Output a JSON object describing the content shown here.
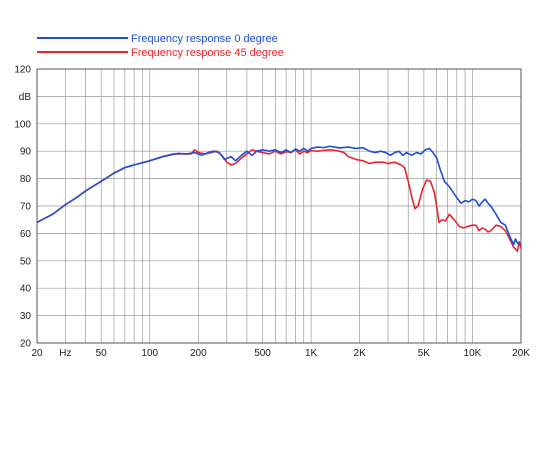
{
  "chart_data": {
    "type": "line",
    "title": "",
    "xlabel": "",
    "ylabel": "",
    "x_scale": "log",
    "xlim": [
      20,
      20000
    ],
    "ylim": [
      20,
      120
    ],
    "grid": true,
    "legend_placement": "top-left",
    "x_ticks": [
      {
        "value": 20,
        "label": "20"
      },
      {
        "value": 30,
        "label": "Hz"
      },
      {
        "value": 50,
        "label": "50"
      },
      {
        "value": 100,
        "label": "100"
      },
      {
        "value": 200,
        "label": "200"
      },
      {
        "value": 500,
        "label": "500"
      },
      {
        "value": 1000,
        "label": "1K"
      },
      {
        "value": 2000,
        "label": "2K"
      },
      {
        "value": 5000,
        "label": "5K"
      },
      {
        "value": 10000,
        "label": "10K"
      },
      {
        "value": 20000,
        "label": "20K"
      }
    ],
    "y_ticks": [
      {
        "value": 20,
        "label": "20"
      },
      {
        "value": 30,
        "label": "30"
      },
      {
        "value": 40,
        "label": "40"
      },
      {
        "value": 50,
        "label": "50"
      },
      {
        "value": 60,
        "label": "60"
      },
      {
        "value": 70,
        "label": "70"
      },
      {
        "value": 80,
        "label": "80"
      },
      {
        "value": 90,
        "label": "90"
      },
      {
        "value": 100,
        "label": "100"
      },
      {
        "value": 110,
        "label": "dB"
      },
      {
        "value": 120,
        "label": "120"
      }
    ],
    "series": [
      {
        "name": "Frequency response 0 degree",
        "color": "#1f4fd6",
        "points": [
          [
            20,
            64
          ],
          [
            25,
            67
          ],
          [
            30,
            70.5
          ],
          [
            35,
            73
          ],
          [
            40,
            75.5
          ],
          [
            50,
            79
          ],
          [
            60,
            82
          ],
          [
            70,
            84
          ],
          [
            80,
            85
          ],
          [
            100,
            86.5
          ],
          [
            120,
            88
          ],
          [
            150,
            89.2
          ],
          [
            170,
            89
          ],
          [
            190,
            89.5
          ],
          [
            210,
            88.5
          ],
          [
            230,
            89.5
          ],
          [
            250,
            90
          ],
          [
            270,
            89.5
          ],
          [
            290,
            87
          ],
          [
            320,
            88
          ],
          [
            340,
            86.5
          ],
          [
            370,
            88.5
          ],
          [
            400,
            90
          ],
          [
            430,
            88.5
          ],
          [
            460,
            90
          ],
          [
            500,
            90.5
          ],
          [
            550,
            90
          ],
          [
            600,
            90.5
          ],
          [
            650,
            89.5
          ],
          [
            700,
            90.5
          ],
          [
            750,
            89.5
          ],
          [
            800,
            90.8
          ],
          [
            850,
            90
          ],
          [
            900,
            91
          ],
          [
            950,
            90
          ],
          [
            1000,
            91
          ],
          [
            1100,
            91.5
          ],
          [
            1200,
            91.3
          ],
          [
            1300,
            91.8
          ],
          [
            1400,
            91.5
          ],
          [
            1500,
            91.2
          ],
          [
            1700,
            91.5
          ],
          [
            1900,
            91
          ],
          [
            2100,
            91.3
          ],
          [
            2300,
            90
          ],
          [
            2500,
            89.5
          ],
          [
            2700,
            90
          ],
          [
            2900,
            89.5
          ],
          [
            3100,
            88.5
          ],
          [
            3300,
            89.5
          ],
          [
            3500,
            90
          ],
          [
            3700,
            88.5
          ],
          [
            3900,
            89.5
          ],
          [
            4200,
            88.5
          ],
          [
            4500,
            89.5
          ],
          [
            4800,
            89
          ],
          [
            5100,
            90.5
          ],
          [
            5400,
            91
          ],
          [
            5700,
            89.5
          ],
          [
            6000,
            87.5
          ],
          [
            6300,
            83.5
          ],
          [
            6700,
            79
          ],
          [
            7200,
            77
          ],
          [
            7700,
            74.5
          ],
          [
            8000,
            73
          ],
          [
            8500,
            71
          ],
          [
            9000,
            72
          ],
          [
            9500,
            71.5
          ],
          [
            10000,
            72.5
          ],
          [
            10500,
            72
          ],
          [
            11000,
            70
          ],
          [
            11500,
            71.5
          ],
          [
            12000,
            72.5
          ],
          [
            12500,
            71
          ],
          [
            13000,
            70
          ],
          [
            14000,
            67
          ],
          [
            15000,
            64
          ],
          [
            16000,
            63
          ],
          [
            17000,
            59
          ],
          [
            18000,
            56
          ],
          [
            18500,
            58
          ],
          [
            19000,
            56.5
          ],
          [
            20000,
            55.5
          ]
        ]
      },
      {
        "name": "Frequency response 45 degree",
        "color": "#e8262b",
        "points": [
          [
            20,
            64
          ],
          [
            25,
            67
          ],
          [
            30,
            70.5
          ],
          [
            35,
            73
          ],
          [
            40,
            75.5
          ],
          [
            50,
            79
          ],
          [
            60,
            82
          ],
          [
            70,
            84
          ],
          [
            80,
            85
          ],
          [
            100,
            86.5
          ],
          [
            120,
            88
          ],
          [
            140,
            89
          ],
          [
            160,
            89
          ],
          [
            180,
            89
          ],
          [
            190,
            90.5
          ],
          [
            200,
            89.5
          ],
          [
            220,
            89
          ],
          [
            240,
            89.5
          ],
          [
            260,
            90
          ],
          [
            280,
            88.5
          ],
          [
            300,
            86
          ],
          [
            320,
            85
          ],
          [
            340,
            85.5
          ],
          [
            370,
            87.5
          ],
          [
            400,
            89
          ],
          [
            430,
            90.5
          ],
          [
            460,
            90
          ],
          [
            500,
            89.5
          ],
          [
            550,
            89
          ],
          [
            600,
            90
          ],
          [
            650,
            89
          ],
          [
            700,
            89.8
          ],
          [
            750,
            89.5
          ],
          [
            800,
            90.5
          ],
          [
            850,
            89
          ],
          [
            900,
            90
          ],
          [
            950,
            89.5
          ],
          [
            1000,
            90.2
          ],
          [
            1100,
            90
          ],
          [
            1200,
            90.3
          ],
          [
            1300,
            90.5
          ],
          [
            1400,
            90.3
          ],
          [
            1500,
            90
          ],
          [
            1600,
            89.5
          ],
          [
            1700,
            88
          ],
          [
            1900,
            87
          ],
          [
            2100,
            86.5
          ],
          [
            2300,
            85.5
          ],
          [
            2500,
            86
          ],
          [
            2800,
            86
          ],
          [
            3000,
            85.5
          ],
          [
            3300,
            86
          ],
          [
            3600,
            85
          ],
          [
            3800,
            84
          ],
          [
            4000,
            79
          ],
          [
            4200,
            73.5
          ],
          [
            4400,
            69
          ],
          [
            4600,
            70
          ],
          [
            4900,
            76
          ],
          [
            5200,
            79.5
          ],
          [
            5500,
            79
          ],
          [
            5800,
            75
          ],
          [
            6000,
            70
          ],
          [
            6200,
            64
          ],
          [
            6500,
            65
          ],
          [
            6800,
            64.5
          ],
          [
            7200,
            67
          ],
          [
            7700,
            65
          ],
          [
            8300,
            62.5
          ],
          [
            8800,
            62
          ],
          [
            9300,
            62.5
          ],
          [
            10000,
            63
          ],
          [
            10500,
            63
          ],
          [
            11000,
            61
          ],
          [
            11500,
            62
          ],
          [
            12000,
            61.5
          ],
          [
            12500,
            60.5
          ],
          [
            13000,
            61
          ],
          [
            14000,
            63
          ],
          [
            15000,
            62.5
          ],
          [
            16000,
            61
          ],
          [
            17000,
            58
          ],
          [
            18000,
            55
          ],
          [
            19000,
            53.5
          ],
          [
            19500,
            57
          ],
          [
            20000,
            54.5
          ]
        ]
      }
    ]
  }
}
